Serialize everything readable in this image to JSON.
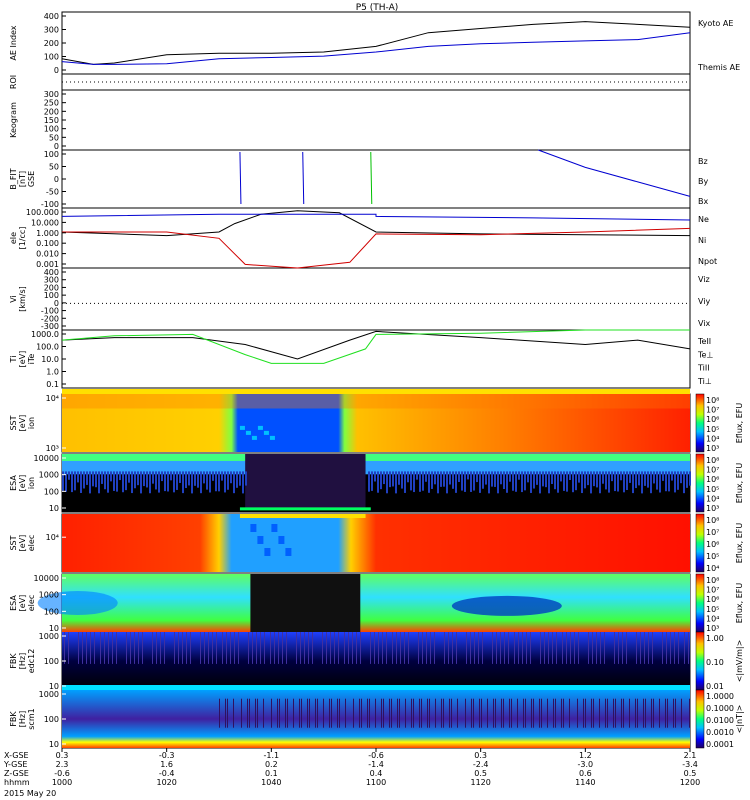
{
  "title": "P5 (TH-A)",
  "date": "2015 May 20",
  "colors": {
    "black": "#000000",
    "red": "#d00000",
    "green": "#00c000",
    "blue": "#0000d0",
    "bright_green": "#20e020"
  },
  "time_axis": {
    "row_labels": [
      "X-GSE",
      "Y-GSE",
      "Z-GSE",
      "hhmm"
    ],
    "ticks": [
      {
        "x": "0.3",
        "y": "2.3",
        "z": "-0.6",
        "t": "1000"
      },
      {
        "x": "-0.3",
        "y": "1.6",
        "z": "-0.4",
        "t": "1020"
      },
      {
        "x": "-1.1",
        "y": "0.2",
        "z": "0.1",
        "t": "1040"
      },
      {
        "x": "-0.6",
        "y": "-1.4",
        "z": "0.4",
        "t": "1100"
      },
      {
        "x": "0.3",
        "y": "-2.4",
        "z": "0.5",
        "t": "1120"
      },
      {
        "x": "1.2",
        "y": "-3.0",
        "z": "0.6",
        "t": "1140"
      },
      {
        "x": "2.1",
        "y": "-3.4",
        "z": "0.5",
        "t": "1200"
      }
    ]
  },
  "panels": [
    {
      "ylabel": [
        "AE Index"
      ],
      "ticks": [
        "400",
        "300",
        "200",
        "100",
        "0"
      ],
      "legend": [
        {
          "text": "Kyoto AE",
          "color": "#0000d0"
        },
        {
          "text": "Themis AE",
          "color": "#000000"
        }
      ]
    },
    {
      "ylabel": [
        "ROI"
      ],
      "ticks": [],
      "legend": []
    },
    {
      "ylabel": [
        "Keogram"
      ],
      "ticks": [
        "300",
        "250",
        "200",
        "150",
        "100",
        "50",
        "0"
      ],
      "legend": []
    },
    {
      "ylabel": [
        "B_FIT",
        "[nT]",
        "GSE"
      ],
      "ticks": [
        "100",
        "50",
        "0",
        "-50",
        "-100"
      ],
      "legend": [
        {
          "text": "Bz",
          "color": "#d00000"
        },
        {
          "text": "By",
          "color": "#00c000"
        },
        {
          "text": "Bx",
          "color": "#0000d0"
        }
      ]
    },
    {
      "ylabel": [
        "eIe",
        "[1/cc]"
      ],
      "ticks": [
        "100.000",
        "10.000",
        "1.000",
        "0.100",
        "0.010",
        "0.001"
      ],
      "legend": [
        {
          "text": "Ne",
          "color": "#d00000"
        },
        {
          "text": "Ni",
          "color": "#000000"
        },
        {
          "text": "Npot",
          "color": "#0000d0"
        }
      ]
    },
    {
      "ylabel": [
        "Vi",
        "[km/s]"
      ],
      "ticks": [
        "400",
        "300",
        "200",
        "100",
        "0",
        "-100",
        "-200",
        "-300"
      ],
      "legend": [
        {
          "text": "Viz",
          "color": "#d00000"
        },
        {
          "text": "Viy",
          "color": "#00c000"
        },
        {
          "text": "Vix",
          "color": "#0000d0"
        }
      ]
    },
    {
      "ylabel": [
        "Ti",
        "[eV]",
        "iTe"
      ],
      "ticks": [
        "1000.0",
        "100.0",
        "10.0",
        "1.0",
        "0.1"
      ],
      "legend": [
        {
          "text": "TeII",
          "color": "#000000"
        },
        {
          "text": "Te⊥",
          "color": "#d00000"
        },
        {
          "text": "TiII",
          "color": "#00c000"
        },
        {
          "text": "Ti⊥",
          "color": "#0000d0"
        }
      ]
    },
    {
      "ylabel": [
        "SST",
        "[eV]",
        "ion"
      ],
      "ticks": [
        "10⁴",
        "10³"
      ],
      "legend": []
    },
    {
      "ylabel": [
        "ESA",
        "[eV]",
        "ion"
      ],
      "ticks": [
        "10000",
        "1000",
        "100",
        "10"
      ],
      "legend": []
    },
    {
      "ylabel": [
        "SST",
        "[eV]",
        "elec"
      ],
      "ticks": [
        "10⁴"
      ],
      "legend": []
    },
    {
      "ylabel": [
        "ESA",
        "[eV]",
        "elec"
      ],
      "ticks": [
        "10000",
        "1000",
        "100",
        "10"
      ],
      "legend": []
    },
    {
      "ylabel": [
        "FBK",
        "[Hz]",
        "edc12"
      ],
      "ticks": [
        "1000",
        "100",
        "10"
      ],
      "legend": []
    },
    {
      "ylabel": [
        "FBK",
        "[Hz]",
        "scm1"
      ],
      "ticks": [
        "1000",
        "100",
        "10"
      ],
      "legend": []
    }
  ],
  "colorbars": [
    {
      "label": "Eflux, EFU",
      "ticks": [
        "10⁸",
        "10⁷",
        "10⁶",
        "10⁵",
        "10⁴",
        "10³"
      ]
    },
    {
      "label": "Eflux, EFU",
      "ticks": [
        "10⁸",
        "10⁷",
        "10⁶",
        "10⁵",
        "10⁴",
        "10³"
      ]
    },
    {
      "label": "Eflux, EFU",
      "ticks": [
        "10⁸",
        "10⁷",
        "10⁶",
        "10⁵",
        "10⁴"
      ]
    },
    {
      "label": "Eflux, EFU",
      "ticks": [
        "10⁸",
        "10⁷",
        "10⁶",
        "10⁵",
        "10⁴",
        "10³"
      ]
    },
    {
      "label": "<|mV/m|>",
      "ticks": [
        "1.00",
        "0.10",
        "0.01"
      ]
    },
    {
      "label": "<|nT|>",
      "ticks": [
        "1.0000",
        "0.1000",
        "0.0100",
        "0.0010",
        "0.0001"
      ]
    }
  ],
  "chart_data": {
    "type": "line",
    "title": "P5 (TH-A)",
    "date": "2015 May 20",
    "x_time_ticks": [
      "1000",
      "1020",
      "1040",
      "1100",
      "1120",
      "1140",
      "1200"
    ],
    "ae_index": {
      "ylim": [
        0,
        450
      ],
      "series": [
        {
          "name": "Themis AE",
          "t": [
            1000,
            1006,
            1010,
            1020,
            1030,
            1040,
            1050,
            1100,
            1110,
            1120,
            1130,
            1140,
            1150,
            1200
          ],
          "values": [
            110,
            70,
            80,
            140,
            150,
            150,
            160,
            200,
            300,
            330,
            360,
            380,
            360,
            340
          ]
        },
        {
          "name": "Kyoto AE",
          "t": [
            1000,
            1006,
            1010,
            1020,
            1030,
            1040,
            1050,
            1100,
            1110,
            1120,
            1130,
            1140,
            1150,
            1200
          ],
          "values": [
            90,
            70,
            70,
            75,
            110,
            120,
            130,
            160,
            200,
            220,
            230,
            240,
            250,
            300
          ]
        }
      ]
    },
    "keogram": {
      "ylim": [
        0,
        300
      ],
      "values": []
    },
    "b_field": {
      "ylim": [
        -100,
        100
      ],
      "series": [
        {
          "name": "Bx",
          "t": [
            1131,
            1140,
            1150,
            1200
          ],
          "values": [
            100,
            40,
            -10,
            -60
          ]
        }
      ]
    },
    "density": {
      "scale": "log",
      "ylim": [
        0.001,
        100
      ],
      "series": [
        {
          "name": "Ni",
          "t": [
            1000,
            1020,
            1030,
            1033,
            1038,
            1045,
            1053,
            1100,
            1120,
            1140,
            1200
          ],
          "values": [
            1,
            0.5,
            1,
            5,
            30,
            60,
            40,
            1,
            0.7,
            0.6,
            0.5
          ]
        },
        {
          "name": "Ne",
          "t": [
            1000,
            1020,
            1030,
            1035,
            1045,
            1055,
            1100,
            1120,
            1140,
            1200
          ],
          "values": [
            1,
            1,
            0.3,
            0.002,
            0.001,
            0.003,
            0.7,
            0.6,
            1,
            2
          ]
        },
        {
          "name": "Npot",
          "t": [
            1000,
            1030,
            1060,
            1100,
            1130,
            1200
          ],
          "values": [
            20,
            30,
            30,
            20,
            15,
            10
          ]
        }
      ]
    },
    "velocity": {
      "ylim": [
        -300,
        400
      ],
      "series": []
    },
    "temperature": {
      "scale": "log",
      "ylim": [
        0.1,
        1000
      ],
      "series": [
        {
          "name": "TeII",
          "t": [
            1000,
            1010,
            1025,
            1035,
            1045,
            1055,
            1100,
            1120,
            1140,
            1150,
            1200
          ],
          "values": [
            200,
            300,
            300,
            100,
            10,
            200,
            800,
            300,
            100,
            200,
            50
          ]
        },
        {
          "name": "TiII",
          "t": [
            1000,
            1010,
            1025,
            1035,
            1040,
            1050,
            1058,
            1100,
            1120,
            1140,
            1200
          ],
          "values": [
            200,
            400,
            500,
            20,
            5,
            5,
            50,
            500,
            600,
            1000,
            1500
          ]
        }
      ]
    }
  }
}
